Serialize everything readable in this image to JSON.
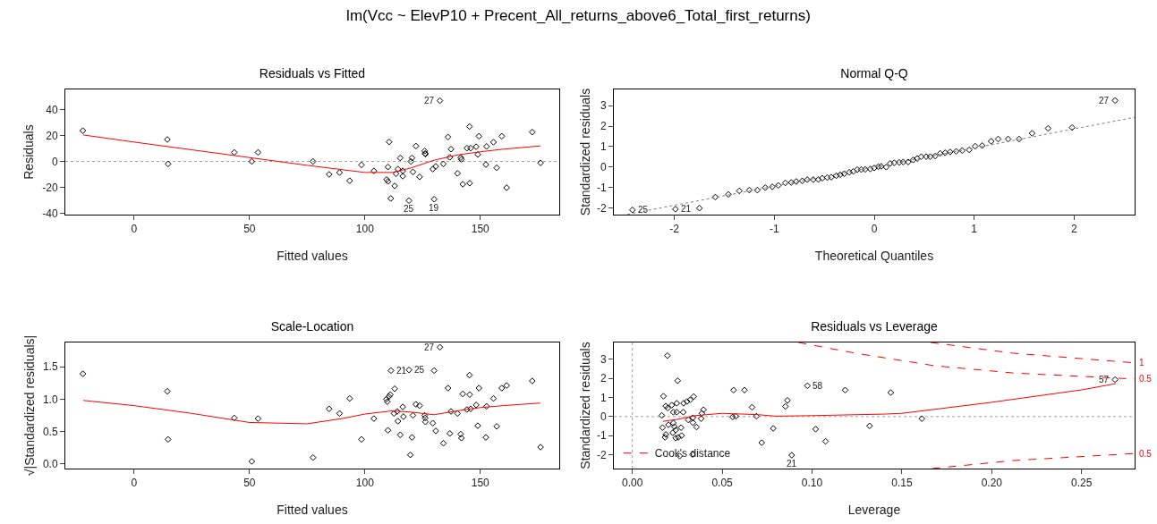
{
  "chart_data": [
    {
      "type": "other",
      "title": "lm(Vcc ~ ElevP10 + Precent_All_returns_above6_Total_first_returns)"
    },
    {
      "type": "scatter",
      "title": "Residuals vs Fitted",
      "xlabel": "Fitted values",
      "ylabel": "Residuals",
      "xlim": [
        -29.8,
        184.2
      ],
      "ylim": [
        -41.1,
        55.7
      ],
      "xticks": [
        0,
        50,
        100,
        150
      ],
      "yticks": [
        -40,
        -20,
        0,
        20,
        40
      ],
      "grid": false,
      "marker": "diamond",
      "series": [
        {
          "type": "scatter",
          "color": "#000000",
          "x": [
            -22.2,
            14.4,
            14.7,
            43.4,
            51,
            53.7,
            77.5,
            84.5,
            89,
            93.4,
            98.5,
            103.9,
            110.5,
            110,
            109.4,
            110,
            111.2,
            112.9,
            113.5,
            114.3,
            115.3,
            116.4,
            116.4,
            119.1,
            119.9,
            120.4,
            120.8,
            122.1,
            123.7,
            125.9,
            126.1,
            126.2,
            129.4,
            130,
            130.7,
            132.5,
            134,
            136,
            136.8,
            137.3,
            140.1,
            141.5,
            141.8,
            142.4,
            144.2,
            145.3,
            145.8,
            145.4,
            148.2,
            148.9,
            149.4,
            152.4,
            152.7,
            155.7,
            157.1,
            159.3,
            161.4,
            172.5,
            176.1
          ],
          "values": [
            23.8,
            17,
            -1.9,
            7,
            0,
            7,
            0,
            -10,
            -8.6,
            -14.9,
            -2.7,
            -7.3,
            15.1,
            -4.3,
            -14,
            -15.4,
            -28.6,
            -18.9,
            -9.5,
            -5.9,
            2.7,
            -7.3,
            -11.4,
            -30.3,
            0,
            2.7,
            -8.1,
            11.9,
            -11.9,
            8.1,
            6.2,
            5.7,
            -5.9,
            -29.2,
            -3.8,
            47,
            -1.9,
            18.9,
            3.2,
            9.5,
            -9.2,
            3,
            1.6,
            -17.6,
            10.3,
            27,
            10.3,
            -16.8,
            11.4,
            5.4,
            19.5,
            -2.4,
            11.6,
            14.9,
            -4.9,
            19.5,
            -20.3,
            22.7,
            -1.1
          ]
        },
        {
          "type": "line",
          "marker": "none",
          "color": "#ff0000",
          "x": [
            -22,
            0,
            25,
            50,
            75,
            100,
            112,
            120,
            130,
            140,
            150,
            160,
            176
          ],
          "values": [
            20.5,
            15,
            9,
            3,
            -3,
            -8.5,
            -8.5,
            -5,
            1,
            5,
            7.5,
            9.5,
            12
          ]
        }
      ],
      "ref_lines": [
        {
          "axis": "y",
          "value": 0,
          "color": "#a0a0a0",
          "line_style": "dotted"
        }
      ],
      "annotations": [
        {
          "text": "27",
          "x": 132.5,
          "y": 47
        },
        {
          "text": "25",
          "x": 119.1,
          "y": -30.3
        },
        {
          "text": "19",
          "x": 130,
          "y": -29.2
        }
      ]
    },
    {
      "type": "scatter",
      "title": "Normal Q-Q",
      "xlabel": "Theoretical Quantiles",
      "ylabel": "Standardized residuals",
      "xlim": [
        -2.606,
        2.606
      ],
      "ylim": [
        -2.316,
        3.79
      ],
      "xticks": [
        -2,
        -1,
        0,
        1,
        2
      ],
      "yticks": [
        -2,
        -1,
        0,
        1,
        2,
        3
      ],
      "grid": false,
      "marker": "diamond",
      "series": [
        {
          "type": "scatter",
          "color": "#000000",
          "x": [
            -2.42,
            -1.99,
            -1.75,
            -1.59,
            -1.46,
            -1.35,
            -1.25,
            -1.17,
            -1.09,
            -1.02,
            -0.96,
            -0.89,
            -0.83,
            -0.78,
            -0.72,
            -0.67,
            -0.61,
            -0.56,
            -0.52,
            -0.47,
            -0.43,
            -0.38,
            -0.34,
            -0.3,
            -0.25,
            -0.21,
            -0.17,
            -0.13,
            -0.09,
            -0.04,
            0,
            0.04,
            0.07,
            0.12,
            0.16,
            0.2,
            0.25,
            0.29,
            0.34,
            0.39,
            0.43,
            0.47,
            0.52,
            0.56,
            0.61,
            0.66,
            0.71,
            0.76,
            0.82,
            0.88,
            0.95,
            1.01,
            1.08,
            1.17,
            1.24,
            1.34,
            1.45,
            1.58,
            1.74,
            1.98,
            2.41
          ],
          "values": [
            -2.09,
            -2.05,
            -2,
            -1.46,
            -1.33,
            -1.16,
            -1.12,
            -1.12,
            -1,
            -0.96,
            -0.89,
            -0.77,
            -0.75,
            -0.7,
            -0.67,
            -0.61,
            -0.61,
            -0.6,
            -0.54,
            -0.51,
            -0.49,
            -0.42,
            -0.37,
            -0.32,
            -0.25,
            -0.21,
            -0.12,
            -0.12,
            -0.11,
            -0.09,
            -0.04,
            0.02,
            0.04,
            0,
            0.18,
            0.21,
            0.23,
            0.25,
            0.25,
            0.35,
            0.42,
            0.51,
            0.51,
            0.51,
            0.54,
            0.67,
            0.7,
            0.74,
            0.77,
            0.81,
            0.84,
            1.02,
            1.05,
            1.26,
            1.37,
            1.37,
            1.37,
            1.65,
            1.89,
            1.93,
            3.25
          ]
        },
        {
          "type": "line",
          "marker": "none",
          "color": "#808080",
          "line_style": "dotted",
          "x": [
            -2.47,
            2.606
          ],
          "values": [
            -2.3,
            2.43
          ]
        }
      ],
      "annotations": [
        {
          "text": "27",
          "x": 2.41,
          "y": 3.25
        },
        {
          "text": "25",
          "x": -2.42,
          "y": -2.09
        },
        {
          "text": "21",
          "x": -1.99,
          "y": -2.05
        }
      ]
    },
    {
      "type": "scatter",
      "title": "Scale-Location",
      "xlabel": "Fitted values",
      "ylabel": "√|Standardized residuals|",
      "xlim": [
        -29.8,
        184.2
      ],
      "ylim": [
        -0.07,
        1.873
      ],
      "xticks": [
        0,
        50,
        100,
        150
      ],
      "yticks": [
        {
          "value": 0,
          "label": "0.0"
        },
        {
          "value": 0.5,
          "label": "0.5"
        },
        {
          "value": 1,
          "label": "1.0"
        },
        {
          "value": 1.5,
          "label": "1.5"
        }
      ],
      "grid": false,
      "marker": "diamond",
      "series": [
        {
          "type": "scatter",
          "color": "#000000",
          "x": [
            -22.2,
            14.4,
            14.7,
            43.4,
            51,
            53.7,
            77.5,
            84.5,
            89,
            93.4,
            98.5,
            103.9,
            109.3,
            109.7,
            110.4,
            111,
            110,
            111.3,
            112.9,
            112.6,
            114,
            114.3,
            115.3,
            116.4,
            116.7,
            119.7,
            119.1,
            120.4,
            120.8,
            122.1,
            123.7,
            125.9,
            126.1,
            126.2,
            129.4,
            130,
            130.7,
            132.5,
            134,
            136,
            136.8,
            137.3,
            140.1,
            141.5,
            141.8,
            142.4,
            144.2,
            145.3,
            145.8,
            145.4,
            148.2,
            148.9,
            149.4,
            152.4,
            152.7,
            155.7,
            157.1,
            159.3,
            161.4,
            172.5,
            176.1
          ],
          "values": [
            1.39,
            1.12,
            0.38,
            0.71,
            0.04,
            0.7,
            0.1,
            0.85,
            0.78,
            1.01,
            0.38,
            0.7,
            1,
            0.96,
            1.04,
            1.07,
            0.52,
            1.44,
            1.16,
            0.78,
            0.81,
            0.66,
            0.45,
            0.88,
            0.73,
            0.14,
            1.45,
            0.41,
            0.75,
            0.92,
            0.9,
            0.75,
            0.71,
            0.65,
            0.63,
            1.44,
            0.51,
            1.8,
            0.32,
            1.17,
            0.47,
            0.81,
            0.78,
            0.46,
            0.4,
            1.08,
            0.84,
            1.37,
            0.85,
            1.07,
            0.91,
            0.59,
            1.17,
            0.41,
            0.89,
            1.01,
            0.58,
            1.17,
            1.21,
            1.28,
            0.26
          ]
        },
        {
          "type": "line",
          "marker": "none",
          "color": "#ff0000",
          "x": [
            -22,
            0,
            25,
            50,
            75,
            90,
            100,
            112,
            120,
            130,
            140,
            150,
            160,
            176
          ],
          "values": [
            0.98,
            0.9,
            0.78,
            0.64,
            0.62,
            0.7,
            0.77,
            0.82,
            0.8,
            0.76,
            0.82,
            0.87,
            0.9,
            0.94
          ]
        }
      ],
      "annotations": [
        {
          "text": "27",
          "x": 132.5,
          "y": 1.8
        },
        {
          "text": "21",
          "x": 111.3,
          "y": 1.44
        },
        {
          "text": "25",
          "x": 119.1,
          "y": 1.45
        }
      ]
    },
    {
      "type": "scatter",
      "title": "Residuals vs Leverage",
      "xlabel": "Leverage",
      "ylabel": "Standardized residuals",
      "xlim": [
        -0.0103,
        0.2795
      ],
      "ylim": [
        -2.73,
        3.89
      ],
      "xticks": [
        {
          "value": 0,
          "label": "0.00"
        },
        {
          "value": 0.05,
          "label": "0.05"
        },
        {
          "value": 0.1,
          "label": "0.10"
        },
        {
          "value": 0.15,
          "label": "0.15"
        },
        {
          "value": 0.2,
          "label": "0.20"
        },
        {
          "value": 0.25,
          "label": "0.25"
        }
      ],
      "yticks": [
        -2,
        -1,
        0,
        1,
        2,
        3
      ],
      "grid": false,
      "marker": "diamond",
      "legend": "bottom left",
      "series": [
        {
          "type": "scatter",
          "color": "#000000",
          "x": [
            0.0195,
            0.0252,
            0.0173,
            0.0186,
            0.0197,
            0.0219,
            0.0247,
            0.0285,
            0.0304,
            0.0322,
            0.0341,
            0.0228,
            0.0247,
            0.0283,
            0.0164,
            0.0311,
            0.0337,
            0.0337,
            0.0357,
            0.0383,
            0.0387,
            0.0396,
            0.0168,
            0.0201,
            0.0228,
            0.0234,
            0.0225,
            0.0241,
            0.0271,
            0.0274,
            0.0256,
            0.0241,
            0.0182,
            0.0186,
            0.0263,
            0.0335,
            0.0563,
            0.0624,
            0.0558,
            0.0576,
            0.0666,
            0.069,
            0.072,
            0.0784,
            0.0852,
            0.0863,
            0.0887,
            0.0974,
            0.102,
            0.1075,
            0.1184,
            0.132,
            0.1438,
            0.1611,
            0.2686
          ],
          "values": [
            3.2,
            1.88,
            1.07,
            0.55,
            0.45,
            0.6,
            0.7,
            0.7,
            0.79,
            0.88,
            1.05,
            0.23,
            0.23,
            0.23,
            0.06,
            -0.17,
            -0.06,
            -0.32,
            -0.55,
            -0.11,
            0.17,
            0.36,
            -0.58,
            -0.43,
            -0.34,
            -0.53,
            -0.85,
            -0.71,
            -0.58,
            -1,
            -1.09,
            -1.13,
            -1.09,
            -0.94,
            -2.07,
            -1.99,
            1.39,
            1.39,
            -0.02,
            0.02,
            0.49,
            0.02,
            -1.37,
            -0.62,
            0.53,
            0.85,
            -2.03,
            1.62,
            -0.66,
            -1.3,
            1.39,
            -0.49,
            1.26,
            -0.11,
            1.94
          ]
        },
        {
          "type": "line",
          "marker": "none",
          "color": "#ff0000",
          "x": [
            0.017,
            0.025,
            0.035,
            0.05,
            0.07,
            0.08,
            0.1,
            0.14,
            0.15,
            0.2,
            0.25,
            0.269
          ],
          "values": [
            -0.25,
            -0.15,
            0.05,
            0.17,
            0.1,
            0.02,
            0.05,
            0.13,
            0.17,
            0.75,
            1.4,
            1.73
          ]
        },
        {
          "type": "line",
          "marker": "none",
          "name": "Cook's distance",
          "color": "#ff0000",
          "line_style": "dashed",
          "x": [
            0.0924,
            0.124,
            0.168,
            0.2117,
            0.2795
          ],
          "values": [
            3.89,
            3.33,
            2.67,
            2.29,
            1.97
          ]
        },
        {
          "type": "line",
          "marker": "none",
          "color": "#ff0000",
          "line_style": "dashed",
          "x": [
            0.166,
            0.2117,
            0.2795
          ],
          "values": [
            3.89,
            3.33,
            2.82
          ]
        },
        {
          "type": "line",
          "marker": "none",
          "color": "#ff0000",
          "line_style": "dashed",
          "x": [
            0.1668,
            0.2117,
            0.2795
          ],
          "values": [
            -2.73,
            -2.31,
            -1.94
          ]
        }
      ],
      "ref_lines": [
        {
          "axis": "x",
          "value": 0,
          "color": "#a0a0a0",
          "line_style": "dotted"
        },
        {
          "axis": "y",
          "value": 0,
          "color": "#a0a0a0",
          "line_style": "dotted"
        }
      ],
      "annotations": [
        {
          "text": "57",
          "x": 0.2686,
          "y": 1.94
        },
        {
          "text": "58",
          "x": 0.0974,
          "y": 1.62
        },
        {
          "text": "21",
          "x": 0.0887,
          "y": -2.03
        },
        {
          "text": "1",
          "x": 0.2795,
          "y": 2.82
        },
        {
          "text": "0.5",
          "x": 0.2795,
          "y": 1.97
        },
        {
          "text": "0.5",
          "x": 0.2795,
          "y": -1.94
        }
      ]
    }
  ]
}
